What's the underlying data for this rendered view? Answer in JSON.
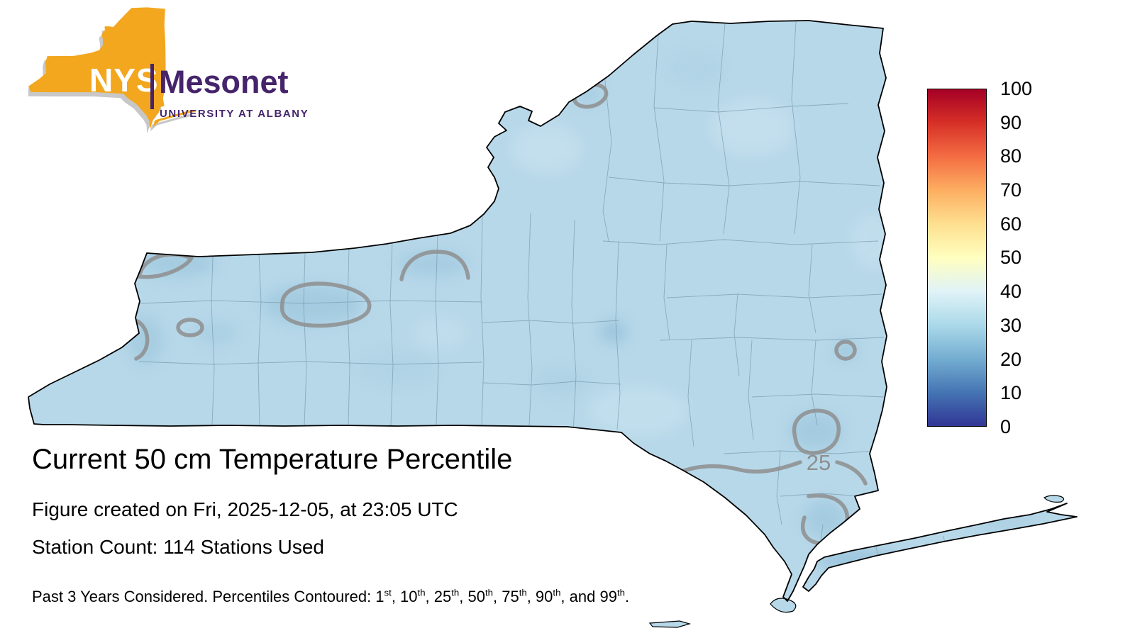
{
  "logo": {
    "acronym": "NYS",
    "name": "Mesonet",
    "affiliation": "UNIVERSITY AT ALBANY"
  },
  "title": "Current 50 cm Temperature Percentile",
  "created_line": "Figure created on Fri, 2025-12-05, at 23:05 UTC",
  "station_line": "Station Count: 114 Stations Used",
  "footer": {
    "parts": [
      {
        "t": "Past 3 Years Considered. Percentiles Contoured: "
      },
      {
        "t": "1",
        "s": "st"
      },
      {
        "t": ", "
      },
      {
        "t": "10",
        "s": "th"
      },
      {
        "t": ", "
      },
      {
        "t": "25",
        "s": "th"
      },
      {
        "t": ", "
      },
      {
        "t": "50",
        "s": "th"
      },
      {
        "t": ", "
      },
      {
        "t": "75",
        "s": "th"
      },
      {
        "t": ", "
      },
      {
        "t": "90",
        "s": "th"
      },
      {
        "t": ", and "
      },
      {
        "t": "99",
        "s": "th"
      },
      {
        "t": "."
      }
    ]
  },
  "map": {
    "contour_label": "25"
  },
  "colorbar": {
    "ticks": [
      "100",
      "90",
      "80",
      "70",
      "60",
      "50",
      "40",
      "30",
      "20",
      "10",
      "0"
    ],
    "colors_top_to_bottom": [
      "#a50026",
      "#d73027",
      "#f46d43",
      "#fdae61",
      "#fee090",
      "#ffffbf",
      "#e0f3f8",
      "#abd9e9",
      "#74add1",
      "#4575b4",
      "#313695"
    ]
  },
  "colors": {
    "map_base": "#b7d8e9",
    "contour": "#8e8e8e",
    "county_line": "#6f94a9",
    "outline": "#000000",
    "logo_orange": "#f2a71f",
    "logo_purple": "#45246b"
  }
}
